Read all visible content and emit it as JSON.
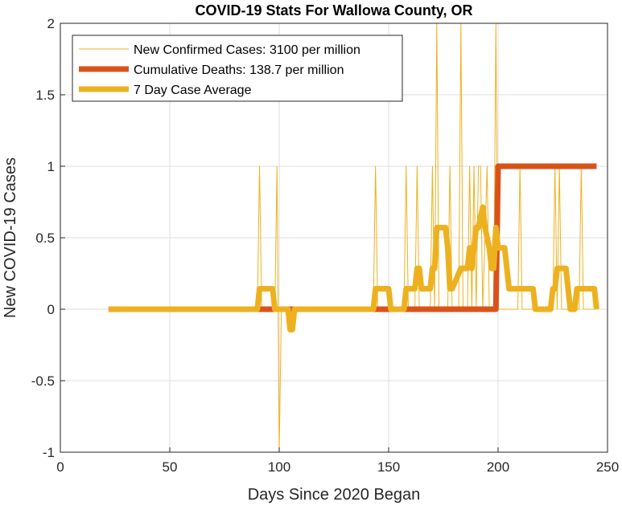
{
  "chart_data": {
    "type": "line",
    "title": "COVID-19 Stats For Wallowa County, OR",
    "xlabel": "Days Since 2020 Began",
    "ylabel": "New COVID-19 Cases",
    "xlim": [
      0,
      250
    ],
    "ylim": [
      -1,
      2
    ],
    "xticks": [
      "0",
      "50",
      "100",
      "150",
      "200",
      "250"
    ],
    "yticks": [
      "-1",
      "-0.5",
      "0",
      "0.5",
      "1",
      "1.5",
      "2"
    ],
    "grid": true,
    "legend_position": "top-left",
    "series": [
      {
        "name": "New Confirmed Cases: 3100 per million",
        "color": "#EDB120",
        "style": "thin",
        "points": [
          [
            22,
            0
          ],
          [
            90,
            0
          ],
          [
            91,
            1
          ],
          [
            92,
            0
          ],
          [
            98,
            0
          ],
          [
            99,
            1
          ],
          [
            100,
            -1
          ],
          [
            101,
            0
          ],
          [
            143,
            0
          ],
          [
            144,
            1
          ],
          [
            145,
            0
          ],
          [
            157,
            0
          ],
          [
            158,
            1
          ],
          [
            159,
            0
          ],
          [
            162,
            0
          ],
          [
            163,
            1
          ],
          [
            164,
            0
          ],
          [
            169,
            0
          ],
          [
            170,
            1
          ],
          [
            171,
            0
          ],
          [
            172,
            2
          ],
          [
            173,
            0
          ],
          [
            177,
            0
          ],
          [
            178,
            1
          ],
          [
            179,
            0
          ],
          [
            182,
            0
          ],
          [
            183,
            2
          ],
          [
            184,
            0
          ],
          [
            186,
            0
          ],
          [
            187,
            1
          ],
          [
            188,
            0
          ],
          [
            189,
            1
          ],
          [
            190,
            0
          ],
          [
            191,
            1
          ],
          [
            192,
            1
          ],
          [
            193,
            0
          ],
          [
            195,
            1
          ],
          [
            196,
            0
          ],
          [
            198,
            0
          ],
          [
            199,
            2
          ],
          [
            200,
            0
          ],
          [
            209,
            0
          ],
          [
            210,
            1
          ],
          [
            211,
            0
          ],
          [
            225,
            0
          ],
          [
            226,
            1
          ],
          [
            227,
            0
          ],
          [
            228,
            1
          ],
          [
            229,
            0
          ],
          [
            237,
            0
          ],
          [
            238,
            1
          ],
          [
            239,
            0
          ],
          [
            245,
            0
          ]
        ]
      },
      {
        "name": "Cumulative Deaths: 138.7 per million",
        "color": "#D95319",
        "style": "thick",
        "points": [
          [
            22,
            0
          ],
          [
            199,
            0
          ],
          [
            200,
            1
          ],
          [
            245,
            1
          ]
        ]
      },
      {
        "name": "7 Day Case Average",
        "color": "#EDB120",
        "style": "thick",
        "points": [
          [
            22,
            0
          ],
          [
            90,
            0
          ],
          [
            91,
            0.143
          ],
          [
            97,
            0.143
          ],
          [
            98,
            0
          ],
          [
            104,
            0
          ],
          [
            105,
            -0.143
          ],
          [
            106,
            -0.143
          ],
          [
            107,
            0
          ],
          [
            143,
            0
          ],
          [
            144,
            0.143
          ],
          [
            150,
            0.143
          ],
          [
            151,
            0
          ],
          [
            157,
            0
          ],
          [
            158,
            0.143
          ],
          [
            162,
            0.143
          ],
          [
            163,
            0.286
          ],
          [
            164,
            0.286
          ],
          [
            165,
            0.143
          ],
          [
            169,
            0.143
          ],
          [
            170,
            0.286
          ],
          [
            171,
            0.286
          ],
          [
            172,
            0.571
          ],
          [
            176,
            0.571
          ],
          [
            177,
            0.429
          ],
          [
            178,
            0.143
          ],
          [
            179,
            0.143
          ],
          [
            183,
            0.286
          ],
          [
            186,
            0.286
          ],
          [
            187,
            0.429
          ],
          [
            188,
            0.286
          ],
          [
            189,
            0.429
          ],
          [
            190,
            0.571
          ],
          [
            191,
            0.571
          ],
          [
            193,
            0.714
          ],
          [
            194,
            0.571
          ],
          [
            196,
            0.429
          ],
          [
            197,
            0.286
          ],
          [
            198,
            0.286
          ],
          [
            199,
            0.571
          ],
          [
            200,
            0.429
          ],
          [
            203,
            0.429
          ],
          [
            205,
            0.143
          ],
          [
            209,
            0.143
          ],
          [
            212,
            0.143
          ],
          [
            216,
            0.143
          ],
          [
            217,
            0
          ],
          [
            224,
            0
          ],
          [
            225,
            0.143
          ],
          [
            226,
            0.143
          ],
          [
            227,
            0.286
          ],
          [
            231,
            0.286
          ],
          [
            232,
            0.143
          ],
          [
            233,
            0
          ],
          [
            235,
            0
          ],
          [
            236,
            0.143
          ],
          [
            238,
            0.143
          ],
          [
            239,
            0.143
          ],
          [
            244,
            0.143
          ],
          [
            245,
            0
          ]
        ]
      }
    ]
  }
}
